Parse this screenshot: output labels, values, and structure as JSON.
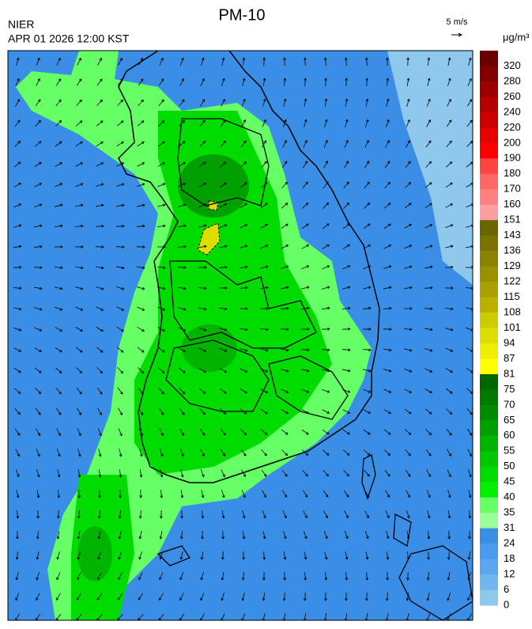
{
  "header": {
    "title": "PM-10",
    "agency": "NIER",
    "datetime": "APR 01 2026 12:00 KST",
    "wind_scale": "5 m/s",
    "unit": "μg/m³"
  },
  "legend": {
    "levels": [
      {
        "value": 320,
        "color": "#6b0000"
      },
      {
        "value": 280,
        "color": "#840000"
      },
      {
        "value": 260,
        "color": "#9c0000"
      },
      {
        "value": 240,
        "color": "#b40000"
      },
      {
        "value": 220,
        "color": "#cc0000"
      },
      {
        "value": 200,
        "color": "#e60000"
      },
      {
        "value": 190,
        "color": "#ff0000"
      },
      {
        "value": 180,
        "color": "#ff4444"
      },
      {
        "value": 170,
        "color": "#ff6666"
      },
      {
        "value": 160,
        "color": "#ff8080"
      },
      {
        "value": 151,
        "color": "#ff9e9e"
      },
      {
        "value": 143,
        "color": "#6b6500"
      },
      {
        "value": 136,
        "color": "#7a7300"
      },
      {
        "value": 129,
        "color": "#8a8200"
      },
      {
        "value": 122,
        "color": "#9a9100"
      },
      {
        "value": 115,
        "color": "#aaa000"
      },
      {
        "value": 108,
        "color": "#bbb000"
      },
      {
        "value": 101,
        "color": "#cccc00"
      },
      {
        "value": 94,
        "color": "#dddd00"
      },
      {
        "value": 87,
        "color": "#eeee00"
      },
      {
        "value": 81,
        "color": "#ffff00"
      },
      {
        "value": 75,
        "color": "#006600"
      },
      {
        "value": 70,
        "color": "#007a00"
      },
      {
        "value": 65,
        "color": "#008c00"
      },
      {
        "value": 60,
        "color": "#00a000"
      },
      {
        "value": 55,
        "color": "#00b400"
      },
      {
        "value": 50,
        "color": "#00c800"
      },
      {
        "value": 45,
        "color": "#00dc00"
      },
      {
        "value": 40,
        "color": "#00f000"
      },
      {
        "value": 35,
        "color": "#66ff66"
      },
      {
        "value": 31,
        "color": "#99ff99"
      },
      {
        "value": 24,
        "color": "#3a8ee6"
      },
      {
        "value": 18,
        "color": "#4a9aee"
      },
      {
        "value": 12,
        "color": "#5aa6f0"
      },
      {
        "value": 6,
        "color": "#70b6f0"
      },
      {
        "value": 0,
        "color": "#8ec8ec"
      }
    ]
  }
}
